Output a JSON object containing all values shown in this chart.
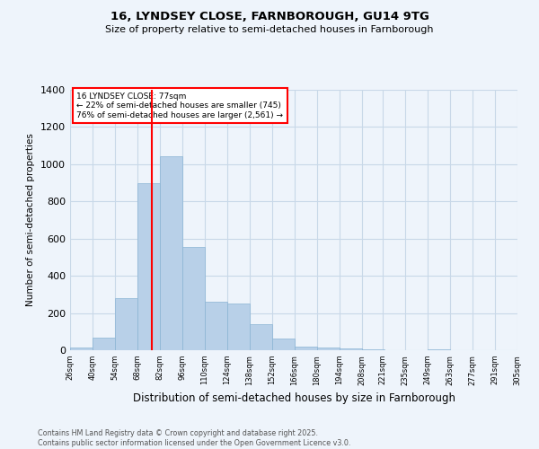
{
  "title1": "16, LYNDSEY CLOSE, FARNBOROUGH, GU14 9TG",
  "title2": "Size of property relative to semi-detached houses in Farnborough",
  "xlabel": "Distribution of semi-detached houses by size in Farnborough",
  "ylabel": "Number of semi-detached properties",
  "footnote": "Contains HM Land Registry data © Crown copyright and database right 2025.\nContains public sector information licensed under the Open Government Licence v3.0.",
  "annotation_line1": "16 LYNDSEY CLOSE: 77sqm",
  "annotation_line2": "← 22% of semi-detached houses are smaller (745)",
  "annotation_line3": "76% of semi-detached houses are larger (2,561) →",
  "bar_color": "#b8d0e8",
  "bar_edge_color": "#8ab4d4",
  "grid_color": "#c8d8e8",
  "background_color": "#eef4fb",
  "property_line_x": 77,
  "bin_edges": [
    26,
    40,
    54,
    68,
    82,
    96,
    110,
    124,
    138,
    152,
    166,
    180,
    194,
    208,
    221,
    235,
    249,
    263,
    277,
    291,
    305
  ],
  "bin_labels": [
    "26sqm",
    "40sqm",
    "54sqm",
    "68sqm",
    "82sqm",
    "96sqm",
    "110sqm",
    "124sqm",
    "138sqm",
    "152sqm",
    "166sqm",
    "180sqm",
    "194sqm",
    "208sqm",
    "221sqm",
    "235sqm",
    "249sqm",
    "263sqm",
    "277sqm",
    "291sqm",
    "305sqm"
  ],
  "counts": [
    15,
    70,
    280,
    900,
    1045,
    555,
    260,
    250,
    140,
    65,
    20,
    15,
    10,
    5,
    0,
    0,
    5,
    0,
    0,
    0
  ],
  "ylim": [
    0,
    1400
  ],
  "yticks": [
    0,
    200,
    400,
    600,
    800,
    1000,
    1200,
    1400
  ]
}
